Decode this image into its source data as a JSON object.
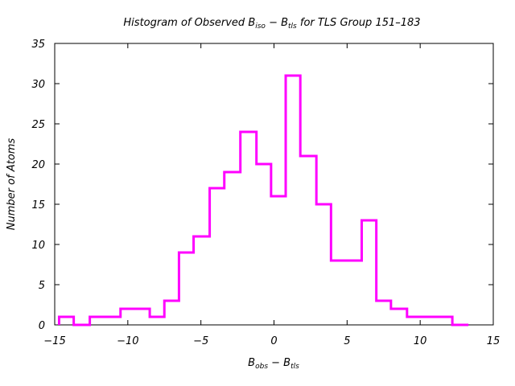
{
  "chart_data": {
    "type": "histogram",
    "title": {
      "prefix": "Histogram of Observed B",
      "sub1": "iso",
      "middle": " − B",
      "sub2": "tls",
      "suffix": " for TLS Group 151–183"
    },
    "xlabel": {
      "base1": "B",
      "sub1": "obs",
      "middle": " − B",
      "sub2": "tls"
    },
    "ylabel": "Number of Atoms",
    "xlim": [
      -15,
      15
    ],
    "ylim": [
      0,
      35
    ],
    "xticks": [
      -15,
      -10,
      -5,
      0,
      5,
      10,
      15
    ],
    "xtick_labels": [
      "−15",
      "−10",
      "−5",
      "0",
      "5",
      "10",
      "15"
    ],
    "yticks": [
      0,
      5,
      10,
      15,
      20,
      25,
      30,
      35
    ],
    "ytick_labels": [
      "0",
      "5",
      "10",
      "15",
      "20",
      "25",
      "30",
      "35"
    ],
    "grid": false,
    "legend": "none",
    "line_color": "#ff00ff",
    "bins": [
      {
        "x0": -14.7,
        "x1": -13.7,
        "count": 1
      },
      {
        "x0": -13.7,
        "x1": -12.6,
        "count": 0
      },
      {
        "x0": -12.6,
        "x1": -10.5,
        "count": 1
      },
      {
        "x0": -10.5,
        "x1": -8.5,
        "count": 2
      },
      {
        "x0": -8.5,
        "x1": -7.5,
        "count": 1
      },
      {
        "x0": -7.5,
        "x1": -6.5,
        "count": 3
      },
      {
        "x0": -6.5,
        "x1": -5.5,
        "count": 9
      },
      {
        "x0": -5.5,
        "x1": -4.4,
        "count": 11
      },
      {
        "x0": -4.4,
        "x1": -3.4,
        "count": 17
      },
      {
        "x0": -3.4,
        "x1": -2.3,
        "count": 19
      },
      {
        "x0": -2.3,
        "x1": -1.2,
        "count": 24
      },
      {
        "x0": -1.2,
        "x1": -0.2,
        "count": 20
      },
      {
        "x0": -0.2,
        "x1": 0.8,
        "count": 16
      },
      {
        "x0": 0.8,
        "x1": 1.8,
        "count": 31
      },
      {
        "x0": 1.8,
        "x1": 2.9,
        "count": 21
      },
      {
        "x0": 2.9,
        "x1": 3.9,
        "count": 15
      },
      {
        "x0": 3.9,
        "x1": 6.0,
        "count": 8
      },
      {
        "x0": 6.0,
        "x1": 7.0,
        "count": 13
      },
      {
        "x0": 7.0,
        "x1": 8.0,
        "count": 3
      },
      {
        "x0": 8.0,
        "x1": 9.1,
        "count": 2
      },
      {
        "x0": 9.1,
        "x1": 12.2,
        "count": 1
      },
      {
        "x0": 12.2,
        "x1": 13.3,
        "count": 0
      }
    ]
  }
}
